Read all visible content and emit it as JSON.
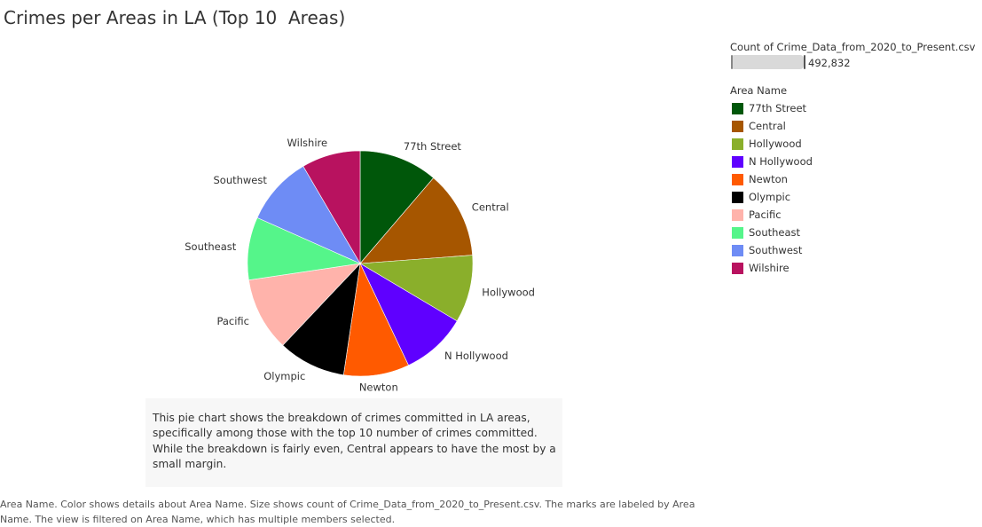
{
  "title": "Crimes per Areas in LA (Top 10  Areas)",
  "legend": {
    "size_title": "Count of Crime_Data_from_2020_to_Present.csv",
    "size_value": "492,832",
    "color_title": "Area Name",
    "items": [
      {
        "label": "77th Street",
        "color": "#00570a"
      },
      {
        "label": "Central",
        "color": "#a65600"
      },
      {
        "label": "Hollywood",
        "color": "#8aaf2b"
      },
      {
        "label": "N Hollywood",
        "color": "#5f00ff"
      },
      {
        "label": "Newton",
        "color": "#ff5a00"
      },
      {
        "label": "Olympic",
        "color": "#000000"
      },
      {
        "label": "Pacific",
        "color": "#ffb3ab"
      },
      {
        "label": "Southeast",
        "color": "#55f58a"
      },
      {
        "label": "Southwest",
        "color": "#6e8cf5"
      },
      {
        "label": "Wilshire",
        "color": "#b8125f"
      }
    ]
  },
  "chart_data": {
    "type": "pie",
    "title": "Crimes per Areas in LA (Top 10  Areas)",
    "categories": [
      "77th Street",
      "Central",
      "Hollywood",
      "N Hollywood",
      "Newton",
      "Olympic",
      "Pacific",
      "Southeast",
      "Southwest",
      "Wilshire"
    ],
    "values": [
      57500,
      64000,
      49500,
      48000,
      48000,
      49500,
      54000,
      46000,
      50500,
      43000
    ],
    "colors": [
      "#00570a",
      "#a65600",
      "#8aaf2b",
      "#5f00ff",
      "#ff5a00",
      "#000000",
      "#ffb3ab",
      "#55f58a",
      "#6e8cf5",
      "#b8125f"
    ],
    "start": "12 o'clock, clockwise"
  },
  "caption": "This pie chart shows the breakdown of crimes committed in LA areas, specifically among those with the top 10 number of crimes committed. While the breakdown is fairly even, Central appears to have the most by a small margin.",
  "footer": "Area Name.  Color shows details about Area Name.  Size shows count of Crime_Data_from_2020_to_Present.csv.  The marks are labeled by Area Name. The view is filtered on Area Name, which has multiple members selected."
}
